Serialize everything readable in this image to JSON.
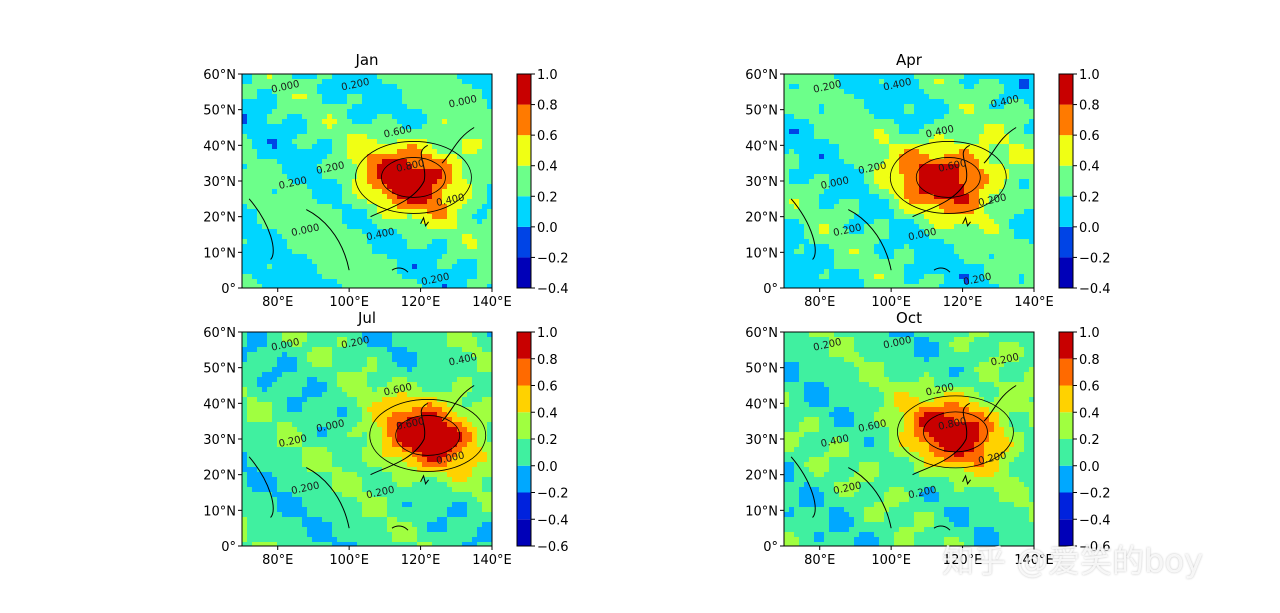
{
  "watermark": "知乎 @爱笑的boy",
  "chart_data": [
    {
      "type": "heatmap",
      "title": "Jan",
      "xlim": [
        70,
        140
      ],
      "ylim": [
        0,
        60
      ],
      "xticks": [
        "80°E",
        "100°E",
        "120°E",
        "140°E"
      ],
      "yticks": [
        "0°",
        "10°N",
        "20°N",
        "30°N",
        "40°N",
        "50°N",
        "60°N"
      ],
      "colorbar": {
        "levels": [
          -0.4,
          -0.2,
          0.0,
          0.2,
          0.4,
          0.6,
          0.8,
          1.0
        ],
        "tick_labels": [
          "−0.4",
          "−0.2",
          "0.0",
          "0.2",
          "0.4",
          "0.6",
          "0.8",
          "1.0"
        ],
        "colors": [
          "#0000b8",
          "#0044e6",
          "#00d6ff",
          "#6cff8a",
          "#f0ff14",
          "#ff7a00",
          "#c80000"
        ]
      },
      "contour_labels": [
        "0.000",
        "0.200",
        "0.000",
        "0.600",
        "0.800",
        "0.200",
        "0.200",
        "0.400",
        "0.400",
        "0.000",
        "0.200"
      ],
      "max_center": [
        118,
        31
      ],
      "max_value": 0.85
    },
    {
      "type": "heatmap",
      "title": "Apr",
      "xlim": [
        70,
        140
      ],
      "ylim": [
        0,
        60
      ],
      "xticks": [
        "80°E",
        "100°E",
        "120°E",
        "140°E"
      ],
      "yticks": [
        "0°",
        "10°N",
        "20°N",
        "30°N",
        "40°N",
        "50°N",
        "60°N"
      ],
      "colorbar": {
        "levels": [
          -0.4,
          -0.2,
          0.0,
          0.2,
          0.4,
          0.6,
          0.8,
          1.0
        ],
        "tick_labels": [
          "−0.4",
          "−0.2",
          "0.0",
          "0.2",
          "0.4",
          "0.6",
          "0.8",
          "1.0"
        ],
        "colors": [
          "#0000b8",
          "#0044e6",
          "#00d6ff",
          "#6cff8a",
          "#f0ff14",
          "#ff7a00",
          "#c80000"
        ]
      },
      "contour_labels": [
        "0.200",
        "0.400",
        "0.400",
        "0.400",
        "0.600",
        "0.200",
        "0.000",
        "0.200",
        "0.000",
        "0.200",
        "0.200"
      ],
      "max_center": [
        116,
        31
      ],
      "max_value": 0.85
    },
    {
      "type": "heatmap",
      "title": "Jul",
      "xlim": [
        70,
        140
      ],
      "ylim": [
        0,
        60
      ],
      "xticks": [
        "80°E",
        "100°E",
        "120°E",
        "140°E"
      ],
      "yticks": [
        "0°",
        "10°N",
        "20°N",
        "30°N",
        "40°N",
        "50°N",
        "60°N"
      ],
      "colorbar": {
        "levels": [
          -0.6,
          -0.4,
          -0.2,
          0.0,
          0.2,
          0.4,
          0.6,
          0.8,
          1.0
        ],
        "tick_labels": [
          "−0.6",
          "−0.4",
          "−0.2",
          "0.0",
          "0.2",
          "0.4",
          "0.6",
          "0.8",
          "1.0"
        ],
        "colors": [
          "#0000b8",
          "#0022dd",
          "#00a8ff",
          "#40f0a0",
          "#a0ff40",
          "#ffd200",
          "#ff6a00",
          "#c80000"
        ]
      },
      "contour_labels": [
        "0.000",
        "0.200",
        "0.400",
        "0.600",
        "0.600",
        "0.000",
        "0.200",
        "0.000",
        "0.200",
        "0.200"
      ],
      "max_center": [
        122,
        31
      ],
      "max_value": 0.85
    },
    {
      "type": "heatmap",
      "title": "Oct",
      "xlim": [
        70,
        140
      ],
      "ylim": [
        0,
        60
      ],
      "xticks": [
        "80°E",
        "100°E",
        "120°E",
        "140°E"
      ],
      "yticks": [
        "0°",
        "10°N",
        "20°N",
        "30°N",
        "40°N",
        "50°N",
        "60°N"
      ],
      "colorbar": {
        "levels": [
          -0.6,
          -0.4,
          -0.2,
          0.0,
          0.2,
          0.4,
          0.6,
          0.8,
          1.0
        ],
        "tick_labels": [
          "−0.6",
          "−0.4",
          "−0.2",
          "0.0",
          "0.2",
          "0.4",
          "0.6",
          "0.8",
          "1.0"
        ],
        "colors": [
          "#0000b8",
          "#0022dd",
          "#00a8ff",
          "#40f0a0",
          "#a0ff40",
          "#ffd200",
          "#ff6a00",
          "#c80000"
        ]
      },
      "contour_labels": [
        "0.200",
        "0.000",
        "0.200",
        "0.200",
        "0.800",
        "0.600",
        "0.400",
        "0.200",
        "0.200",
        "0.200"
      ],
      "max_center": [
        118,
        32
      ],
      "max_value": 0.85
    }
  ]
}
